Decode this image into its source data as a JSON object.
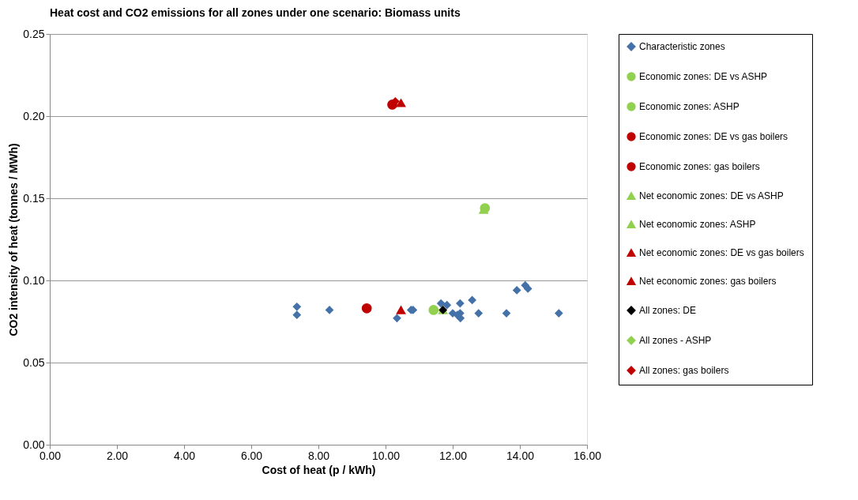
{
  "chart_data": {
    "type": "scatter",
    "title": "Heat cost and CO2 emissions for all zones under one scenario:  Biomass units",
    "xlabel": "Cost of heat (p / kWh)",
    "ylabel": "CO2 intensity of heat (tonnes / MWh)",
    "xlim": [
      0,
      16
    ],
    "ylim": [
      0,
      0.25
    ],
    "xticks": [
      {
        "value": 0,
        "label": "0.00"
      },
      {
        "value": 2,
        "label": "2.00"
      },
      {
        "value": 4,
        "label": "4.00"
      },
      {
        "value": 6,
        "label": "6.00"
      },
      {
        "value": 8,
        "label": "8.00"
      },
      {
        "value": 10,
        "label": "10.00"
      },
      {
        "value": 12,
        "label": "12.00"
      },
      {
        "value": 14,
        "label": "14.00"
      },
      {
        "value": 16,
        "label": "16.00"
      }
    ],
    "yticks": [
      {
        "value": 0,
        "label": "0.00"
      },
      0.05,
      {
        "value": 0.1,
        "label": "0.10"
      },
      0.15,
      {
        "value": 0.2,
        "label": "0.20"
      },
      0.25
    ],
    "grid": "y",
    "legend": "right",
    "series": [
      {
        "name": "Characteristic zones",
        "color": "#4472a8",
        "marker": "diamond",
        "x": [
          7.36,
          7.36,
          8.33,
          10.34,
          10.76,
          10.82,
          11.65,
          11.83,
          12.0,
          12.22,
          12.22,
          12.14,
          12.23,
          12.58,
          12.77,
          13.6,
          13.91,
          14.16,
          14.24,
          15.16
        ],
        "values": [
          0.084,
          0.079,
          0.082,
          0.077,
          0.082,
          0.082,
          0.086,
          0.085,
          0.08,
          0.086,
          0.08,
          0.079,
          0.077,
          0.088,
          0.08,
          0.08,
          0.094,
          0.097,
          0.095,
          0.08
        ]
      },
      {
        "name": "Economic zones: DE vs ASHP",
        "color": "#92d050",
        "marker": "circle",
        "x": [
          11.43
        ],
        "values": [
          0.082
        ]
      },
      {
        "name": "Economic zones: ASHP",
        "color": "#92d050",
        "marker": "circle",
        "x": [
          12.96
        ],
        "values": [
          0.144
        ]
      },
      {
        "name": "Economic zones: DE vs gas boilers",
        "color": "#c00000",
        "marker": "circle",
        "x": [
          9.44
        ],
        "values": [
          0.083
        ]
      },
      {
        "name": "Economic zones: gas boilers",
        "color": "#c00000",
        "marker": "circle",
        "x": [
          10.2
        ],
        "values": [
          0.207
        ]
      },
      {
        "name": "Net economic zones: DE vs ASHP",
        "color": "#92d050",
        "marker": "triangle",
        "x": [
          11.71
        ],
        "values": [
          0.082
        ]
      },
      {
        "name": "Net economic zones: ASHP",
        "color": "#92d050",
        "marker": "triangle",
        "x": [
          12.92
        ],
        "values": [
          0.143
        ]
      },
      {
        "name": "Net economic zones: DE vs gas boilers",
        "color": "#c00000",
        "marker": "triangle",
        "x": [
          10.46
        ],
        "values": [
          0.082
        ]
      },
      {
        "name": "Net economic zones: gas boilers",
        "color": "#c00000",
        "marker": "triangle",
        "x": [
          10.46
        ],
        "values": [
          0.208
        ]
      },
      {
        "name": "All zones: DE",
        "color": "#000000",
        "marker": "diamond",
        "x": [
          11.71
        ],
        "values": [
          0.082
        ]
      },
      {
        "name": "All zones - ASHP",
        "color": "#92d050",
        "marker": "diamond",
        "x": [
          null
        ],
        "values": [
          null
        ]
      },
      {
        "name": "All zones: gas boilers",
        "color": "#c00000",
        "marker": "diamond",
        "x": [
          10.29
        ],
        "values": [
          0.209
        ]
      }
    ]
  }
}
